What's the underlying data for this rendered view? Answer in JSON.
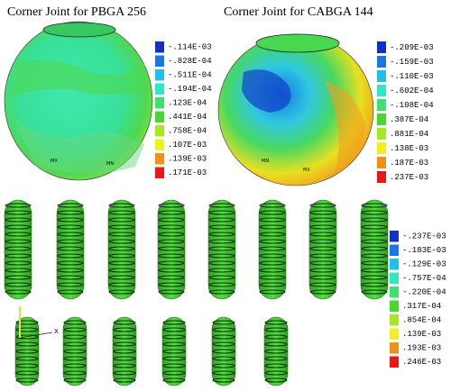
{
  "panels": [
    {
      "title": "Corner Joint for PBGA 256",
      "markers": [
        "MX",
        "MN"
      ],
      "legend": {
        "labels": [
          "-.114E-03",
          "-.828E-04",
          "-.511E-04",
          "-.194E-04",
          ".123E-04",
          ".441E-04",
          ".758E-04",
          ".107E-03",
          ".139E-03",
          ".171E-03"
        ],
        "colors": [
          "#1030c8",
          "#1878e0",
          "#20c0e8",
          "#30e8c0",
          "#40e070",
          "#48d830",
          "#a8e820",
          "#f0f020",
          "#f09018",
          "#e81818"
        ]
      }
    },
    {
      "title": "Corner Joint for CABGA 144",
      "markers": [
        "MN",
        "MX"
      ],
      "legend": {
        "labels": [
          "-.209E-03",
          "-.159E-03",
          "-.110E-03",
          "-.602E-04",
          "-.108E-04",
          ".387E-04",
          ".881E-04",
          ".138E-03",
          ".187E-03",
          ".237E-03"
        ],
        "colors": [
          "#1030c8",
          "#1878e0",
          "#20c0e8",
          "#30e8c0",
          "#40e070",
          "#48d830",
          "#a8e820",
          "#f0f020",
          "#f09018",
          "#e81818"
        ]
      }
    },
    {
      "axis_label": "X",
      "legend": {
        "labels": [
          "-.237E-03",
          "-.183E-03",
          "-.129E-03",
          "-.757E-04",
          "-.220E-04",
          ".317E-04",
          ".854E-04",
          ".139E-03",
          ".193E-03",
          ".246E-03"
        ],
        "colors": [
          "#1030c8",
          "#1878e0",
          "#20c0e8",
          "#30e8c0",
          "#40e070",
          "#48d830",
          "#a8e820",
          "#f0f020",
          "#f09018",
          "#e81818"
        ]
      }
    }
  ]
}
